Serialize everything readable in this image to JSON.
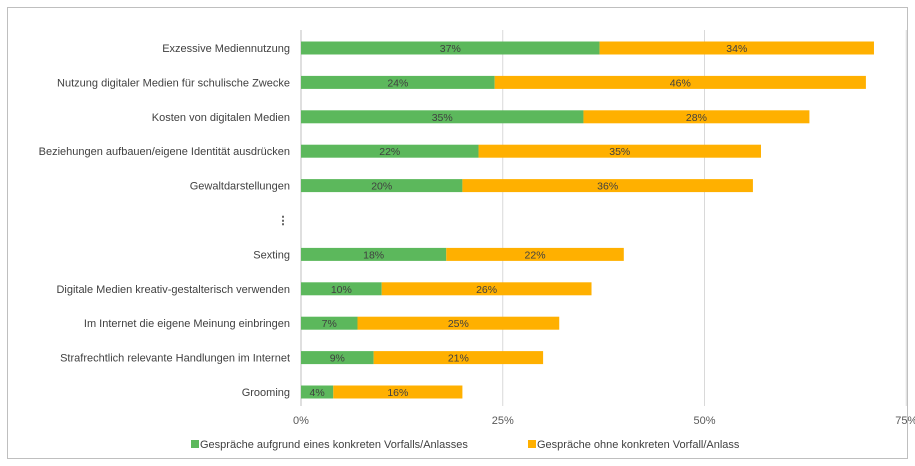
{
  "chart_data": {
    "type": "bar",
    "orientation": "horizontal",
    "stacked": true,
    "categories": [
      "Exzessive Mediennutzung",
      "Nutzung digitaler Medien für schulische Zwecke",
      "Kosten von digitalen Medien",
      "Beziehungen aufbauen/eigene Identität ausdrücken",
      "Gewaltdarstellungen",
      "⋮",
      "Sexting",
      "Digitale Medien kreativ-gestalterisch verwenden",
      "Im Internet die eigene Meinung einbringen",
      "Strafrechtlich relevante Handlungen im Internet",
      "Grooming"
    ],
    "series": [
      {
        "name": "Gespräche aufgrund eines konkreten Vorfalls/Anlasses",
        "color": "#5cb85c",
        "values": [
          37,
          24,
          35,
          22,
          20,
          null,
          18,
          10,
          7,
          9,
          4
        ]
      },
      {
        "name": "Gespräche ohne konkreten Vorfall/Anlass",
        "color": "#ffb000",
        "values": [
          34,
          46,
          28,
          35,
          36,
          null,
          22,
          26,
          25,
          21,
          16
        ]
      }
    ],
    "data_labels": [
      [
        "37%",
        "34%"
      ],
      [
        "24%",
        "46%"
      ],
      [
        "35%",
        "28%"
      ],
      [
        "22%",
        "35%"
      ],
      [
        "20%",
        "36%"
      ],
      [
        "",
        ""
      ],
      [
        "18%",
        "22%"
      ],
      [
        "10%",
        "26%"
      ],
      [
        "7%",
        "25%"
      ],
      [
        "9%",
        "21%"
      ],
      [
        "4%",
        "16%"
      ]
    ],
    "xlim": [
      0,
      75
    ],
    "x_ticks": [
      0,
      25,
      50,
      75
    ],
    "x_tick_labels": [
      "0%",
      "25%",
      "50%",
      "75%"
    ],
    "grid": true,
    "legend_position": "bottom"
  }
}
